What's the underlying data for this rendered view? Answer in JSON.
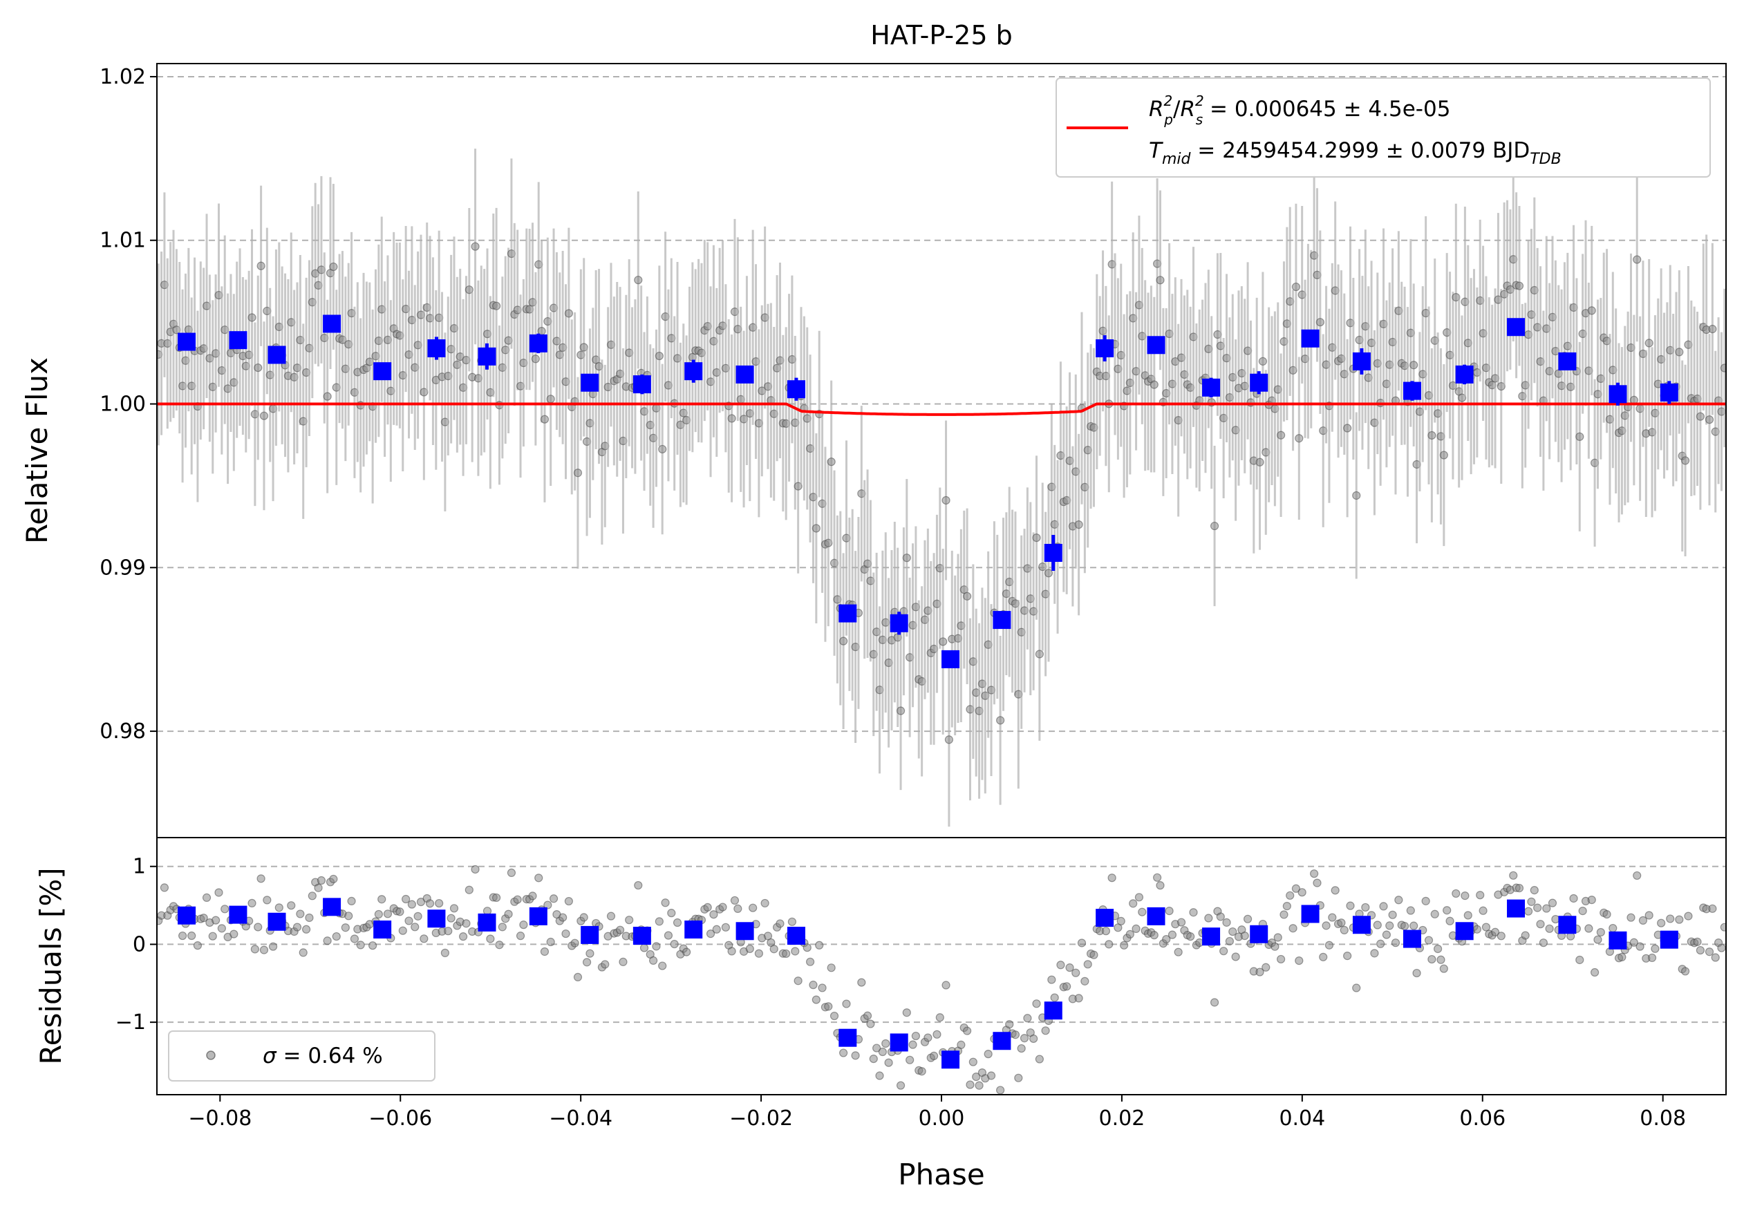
{
  "chart_data": [
    {
      "type": "scatter",
      "panel": "main",
      "title": "HAT-P-25 b",
      "xlabel": "",
      "ylabel": "Relative Flux",
      "xlim": [
        -0.087,
        0.087
      ],
      "ylim": [
        0.9735,
        1.0208
      ],
      "yticks": [
        0.98,
        0.99,
        1.0,
        1.01,
        1.02
      ],
      "ytick_labels": [
        "0.98",
        "0.99",
        "1.00",
        "1.01",
        "1.02"
      ],
      "grid": "horizontal dashed",
      "legend": {
        "placement": "top-right",
        "line_label_parts": {
          "eq1_sym_a": "R",
          "eq1_sub_a": "p",
          "eq1_sup_a": "2",
          "eq1_slash": "/",
          "eq1_sym_b": "R",
          "eq1_sub_b": "s",
          "eq1_sup_b": "2",
          "eq1_value": " = 0.000645 ± 4.5e-05",
          "eq2_sym": "T",
          "eq2_sub": "mid",
          "eq2_value": " = 2459454.2999 ± 0.0079 BJD",
          "eq2_unit_sub": "TDB"
        }
      },
      "model": {
        "color": "#ff0000",
        "baseline": 1.0,
        "ingress_start": -0.0172,
        "ingress_end": -0.0155,
        "egress_start": 0.0155,
        "egress_end": 0.0172,
        "depth_edge": 0.00045,
        "depth_center": 0.00065
      },
      "raw_points_style": {
        "color": "#808080",
        "errorbar_color": "#b0b0b0"
      },
      "binned_series": {
        "color": "#0000ff",
        "x": [
          -0.0837,
          -0.078,
          -0.0737,
          -0.0676,
          -0.062,
          -0.056,
          -0.0504,
          -0.0447,
          -0.039,
          -0.0332,
          -0.0275,
          -0.0218,
          -0.0161,
          -0.0104,
          -0.0047,
          0.001,
          0.0067,
          0.0124,
          0.0181,
          0.0238,
          0.0299,
          0.0352,
          0.0409,
          0.0466,
          0.0522,
          0.058,
          0.0637,
          0.0694,
          0.075,
          0.0807
        ],
        "y": [
          1.0038,
          1.0039,
          1.003,
          1.0049,
          1.002,
          1.0034,
          1.0029,
          1.0037,
          1.0013,
          1.0012,
          1.002,
          1.0018,
          1.0009,
          0.9872,
          0.9866,
          0.9844,
          0.9868,
          0.9909,
          1.0034,
          1.0036,
          1.001,
          1.0013,
          1.004,
          1.0026,
          1.0008,
          1.0018,
          1.0047,
          1.0026,
          1.0006,
          1.0007
        ],
        "yerr": [
          0.0005,
          0.0005,
          0.0005,
          0.0005,
          0.0005,
          0.0007,
          0.0008,
          0.0006,
          0.0005,
          0.0006,
          0.0007,
          0.0005,
          0.0007,
          0.0005,
          0.0007,
          0.0005,
          0.0005,
          0.0011,
          0.0008,
          0.0005,
          0.0006,
          0.0007,
          0.0005,
          0.0008,
          0.0006,
          0.0006,
          0.0005,
          0.0005,
          0.0007,
          0.0007
        ]
      }
    },
    {
      "type": "scatter",
      "panel": "residuals",
      "xlabel": "Phase",
      "ylabel": "Residuals [%]",
      "xlim": [
        -0.087,
        0.087
      ],
      "ylim": [
        -1.93,
        1.37
      ],
      "xticks": [
        -0.08,
        -0.06,
        -0.04,
        -0.02,
        0.0,
        0.02,
        0.04,
        0.06,
        0.08
      ],
      "xtick_labels": [
        "−0.08",
        "−0.06",
        "−0.04",
        "−0.02",
        "0.00",
        "0.02",
        "0.04",
        "0.06",
        "0.08"
      ],
      "yticks": [
        -1,
        0,
        1
      ],
      "ytick_labels": [
        "−1",
        "0",
        "1"
      ],
      "grid": "horizontal dashed",
      "legend": {
        "placement": "lower-left",
        "sigma_symbol": "σ",
        "sigma_value": " = 0.64 %"
      },
      "binned_series": {
        "color": "#0000ff",
        "x": [
          -0.0837,
          -0.078,
          -0.0737,
          -0.0676,
          -0.062,
          -0.056,
          -0.0504,
          -0.0447,
          -0.039,
          -0.0332,
          -0.0275,
          -0.0218,
          -0.0161,
          -0.0104,
          -0.0047,
          0.001,
          0.0067,
          0.0124,
          0.0181,
          0.0238,
          0.0299,
          0.0352,
          0.0409,
          0.0466,
          0.0522,
          0.058,
          0.0637,
          0.0694,
          0.075,
          0.0807
        ],
        "y": [
          0.37,
          0.38,
          0.29,
          0.48,
          0.19,
          0.33,
          0.28,
          0.36,
          0.12,
          0.11,
          0.19,
          0.17,
          0.11,
          -1.2,
          -1.26,
          -1.48,
          -1.24,
          -0.85,
          0.34,
          0.36,
          0.1,
          0.13,
          0.39,
          0.25,
          0.07,
          0.17,
          0.46,
          0.25,
          0.05,
          0.06
        ]
      }
    }
  ]
}
